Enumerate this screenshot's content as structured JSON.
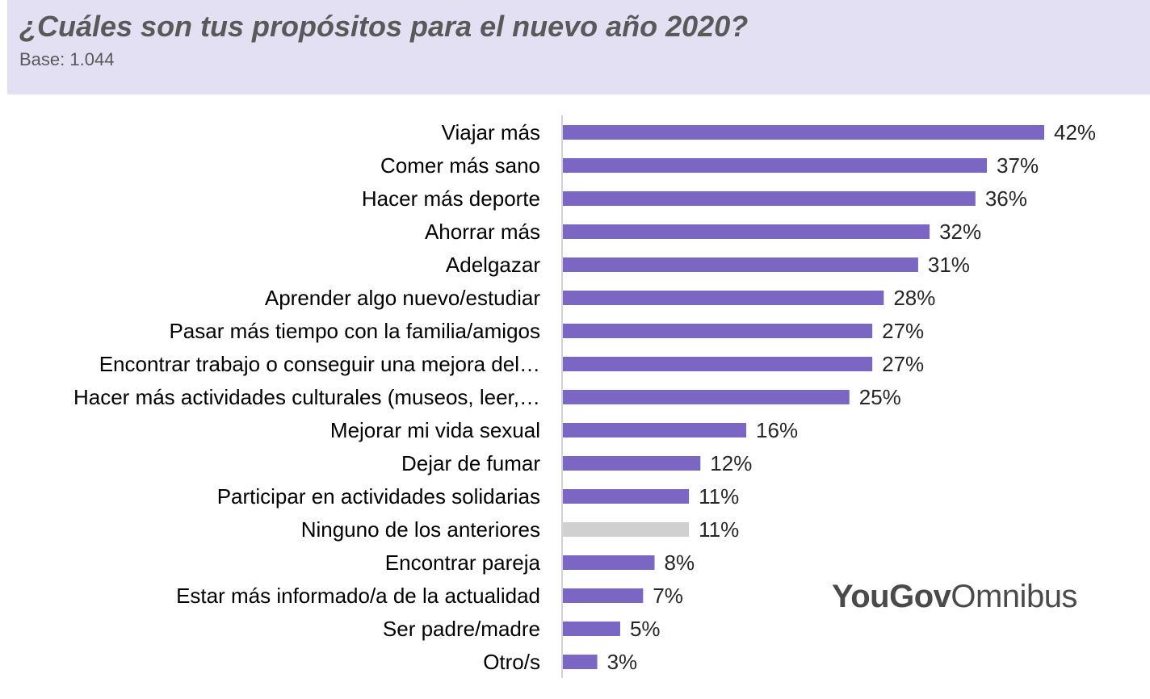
{
  "header": {
    "title": "¿Cuáles son tus propósitos para el nuevo año 2020?",
    "subtitle": "Base: 1.044"
  },
  "logo": {
    "brand": "YouGov",
    "product": "Omnibus"
  },
  "colors": {
    "bar": "#7b66c3",
    "bar_muted": "#d0d0ce",
    "header_bg": "#e4e0f4",
    "text": "#000000",
    "title": "#595959"
  },
  "chart_data": {
    "type": "bar",
    "orientation": "horizontal",
    "title": "¿Cuáles son tus propósitos para el nuevo año 2020?",
    "subtitle": "Base: 1.044",
    "xlabel": "",
    "ylabel": "",
    "xlim": [
      0,
      42
    ],
    "grid": false,
    "legend": "none",
    "value_suffix": "%",
    "categories": [
      "Viajar más",
      "Comer más sano",
      "Hacer más deporte",
      "Ahorrar más",
      "Adelgazar",
      "Aprender algo nuevo/estudiar",
      "Pasar más tiempo con la familia/amigos",
      "Encontrar trabajo o conseguir una mejora del…",
      "Hacer más actividades culturales (museos, leer,…",
      "Mejorar mi vida sexual",
      "Dejar de fumar",
      "Participar en actividades solidarias",
      "Ninguno de los anteriores",
      "Encontrar pareja",
      "Estar más informado/a de la actualidad",
      "Ser padre/madre",
      "Otro/s"
    ],
    "values": [
      42,
      37,
      36,
      32,
      31,
      28,
      27,
      27,
      25,
      16,
      12,
      11,
      11,
      8,
      7,
      5,
      3
    ],
    "highlight": [
      false,
      false,
      false,
      false,
      false,
      false,
      false,
      false,
      false,
      false,
      false,
      false,
      true,
      false,
      false,
      false,
      false
    ]
  }
}
